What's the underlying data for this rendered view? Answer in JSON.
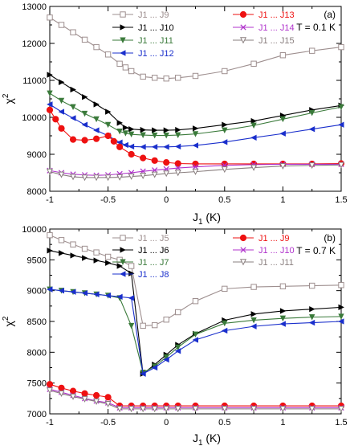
{
  "chart_data": [
    {
      "type": "line",
      "panel_label": "(a)",
      "annotation": "T = 0.1 K",
      "xlabel": "J",
      "xlabel_sub": "1",
      "xlabel_unit": " (K)",
      "ylabel": "χ",
      "ylabel_sup": "2",
      "xlim": [
        -1,
        1.5
      ],
      "ylim": [
        8000,
        13000
      ],
      "xticks": [
        -1,
        -0.5,
        0,
        0.5,
        1,
        1.5
      ],
      "xtick_labels": [
        "-1",
        "-0.5",
        "0",
        "0.5",
        "1",
        "1.5"
      ],
      "yticks": [
        8000,
        9000,
        10000,
        11000,
        12000,
        13000
      ],
      "ytick_labels": [
        "8000",
        "9000",
        "10000",
        "11000",
        "12000",
        "13000"
      ],
      "series": [
        {
          "name": "J1 ... J9",
          "color": "#9e8f8f",
          "marker": "square-open",
          "x": [
            -1,
            -0.9,
            -0.8,
            -0.7,
            -0.6,
            -0.5,
            -0.4,
            -0.35,
            -0.3,
            -0.2,
            -0.1,
            0,
            0.1,
            0.25,
            0.5,
            0.75,
            1,
            1.25,
            1.5
          ],
          "y": [
            12700,
            12500,
            12300,
            12100,
            11900,
            11700,
            11450,
            11350,
            11250,
            11100,
            11070,
            11050,
            11070,
            11120,
            11250,
            11450,
            11680,
            11800,
            11900
          ]
        },
        {
          "name": "J1 ... J10",
          "color": "#000000",
          "marker": "triangle-right",
          "x": [
            -1,
            -0.9,
            -0.8,
            -0.7,
            -0.6,
            -0.5,
            -0.4,
            -0.35,
            -0.3,
            -0.2,
            -0.1,
            0,
            0.1,
            0.25,
            0.5,
            0.75,
            1,
            1.25,
            1.5
          ],
          "y": [
            11150,
            10950,
            10750,
            10550,
            10350,
            10150,
            9850,
            9720,
            9680,
            9660,
            9650,
            9650,
            9660,
            9700,
            9800,
            9900,
            10050,
            10200,
            10320
          ]
        },
        {
          "name": "J1 ... J11",
          "color": "#3a7a3a",
          "marker": "triangle-down",
          "x": [
            -1,
            -0.9,
            -0.8,
            -0.7,
            -0.6,
            -0.5,
            -0.4,
            -0.35,
            -0.3,
            -0.2,
            -0.1,
            0,
            0.1,
            0.25,
            0.5,
            0.75,
            1,
            1.25,
            1.5
          ],
          "y": [
            10650,
            10450,
            10280,
            10100,
            9950,
            9800,
            9620,
            9570,
            9540,
            9520,
            9510,
            9510,
            9520,
            9550,
            9650,
            9780,
            9950,
            10120,
            10280
          ]
        },
        {
          "name": "J1 ... J12",
          "color": "#1a2fcc",
          "marker": "triangle-left",
          "x": [
            -1,
            -0.9,
            -0.8,
            -0.7,
            -0.6,
            -0.5,
            -0.4,
            -0.35,
            -0.3,
            -0.2,
            -0.1,
            0,
            0.1,
            0.25,
            0.5,
            0.75,
            1,
            1.25,
            1.5
          ],
          "y": [
            10350,
            10150,
            9980,
            9800,
            9650,
            9500,
            9320,
            9250,
            9210,
            9200,
            9200,
            9200,
            9210,
            9240,
            9330,
            9450,
            9560,
            9680,
            9800
          ]
        },
        {
          "name": "J1 ... J13",
          "color": "#ee1111",
          "marker": "circle-filled",
          "x": [
            -1,
            -0.95,
            -0.9,
            -0.8,
            -0.7,
            -0.6,
            -0.5,
            -0.45,
            -0.4,
            -0.3,
            -0.2,
            -0.1,
            0,
            0.1,
            0.25,
            0.5,
            0.75,
            1,
            1.25,
            1.5
          ],
          "y": [
            10200,
            9950,
            9700,
            9400,
            9380,
            9420,
            9500,
            9350,
            9200,
            9000,
            8900,
            8830,
            8780,
            8750,
            8740,
            8740,
            8740,
            8740,
            8740,
            8750
          ]
        },
        {
          "name": "J1 ... J14",
          "color": "#b033cc",
          "marker": "x",
          "x": [
            -1,
            -0.9,
            -0.8,
            -0.7,
            -0.6,
            -0.5,
            -0.4,
            -0.3,
            -0.2,
            -0.1,
            0,
            0.1,
            0.25,
            0.5,
            0.75,
            1,
            1.25,
            1.5
          ],
          "y": [
            8560,
            8500,
            8460,
            8440,
            8430,
            8440,
            8470,
            8500,
            8540,
            8570,
            8600,
            8630,
            8660,
            8700,
            8720,
            8730,
            8730,
            8730
          ]
        },
        {
          "name": "J1 ... J15",
          "color": "#8a7f7f",
          "marker": "triangle-down-open",
          "x": [
            -1,
            -0.9,
            -0.8,
            -0.7,
            -0.6,
            -0.5,
            -0.4,
            -0.3,
            -0.2,
            -0.1,
            0,
            0.1,
            0.25,
            0.5,
            0.75,
            1,
            1.25,
            1.5
          ],
          "y": [
            8530,
            8450,
            8390,
            8370,
            8370,
            8370,
            8380,
            8400,
            8420,
            8450,
            8480,
            8500,
            8530,
            8590,
            8640,
            8680,
            8700,
            8710
          ]
        }
      ]
    },
    {
      "type": "line",
      "panel_label": "(b)",
      "annotation": "T = 0.7 K",
      "xlabel": "J",
      "xlabel_sub": "1",
      "xlabel_unit": " (K)",
      "ylabel": "χ",
      "ylabel_sup": "2",
      "xlim": [
        -1,
        1.5
      ],
      "ylim": [
        7000,
        10000
      ],
      "xticks": [
        -1,
        -0.5,
        0,
        0.5,
        1,
        1.5
      ],
      "xtick_labels": [
        "-1",
        "-0.5",
        "0",
        "0.5",
        "1",
        "1.5"
      ],
      "yticks": [
        7000,
        7500,
        8000,
        8500,
        9000,
        9500,
        10000
      ],
      "ytick_labels": [
        "7000",
        "7500",
        "8000",
        "8500",
        "9000",
        "9500",
        "10000"
      ],
      "series": [
        {
          "name": "J1 ... J5",
          "color": "#9e8f8f",
          "marker": "square-open",
          "x": [
            -1,
            -0.9,
            -0.8,
            -0.7,
            -0.6,
            -0.5,
            -0.4,
            -0.3,
            -0.2,
            -0.1,
            0,
            0.1,
            0.25,
            0.5,
            0.75,
            1,
            1.25,
            1.5
          ],
          "y": [
            9900,
            9820,
            9750,
            9680,
            9620,
            9550,
            9500,
            9400,
            8430,
            8440,
            8530,
            8650,
            8830,
            9030,
            9060,
            9070,
            9080,
            9090
          ]
        },
        {
          "name": "J1 ... J6",
          "color": "#000000",
          "marker": "triangle-right",
          "x": [
            -1,
            -0.9,
            -0.8,
            -0.7,
            -0.6,
            -0.5,
            -0.4,
            -0.3,
            -0.2,
            -0.1,
            0,
            0.1,
            0.25,
            0.5,
            0.75,
            1,
            1.25,
            1.5
          ],
          "y": [
            9650,
            9610,
            9570,
            9530,
            9490,
            9450,
            9400,
            9280,
            7650,
            7800,
            7960,
            8120,
            8300,
            8520,
            8620,
            8670,
            8700,
            8730
          ]
        },
        {
          "name": "J1 ... J7",
          "color": "#3a7a3a",
          "marker": "triangle-down",
          "x": [
            -1,
            -0.9,
            -0.8,
            -0.7,
            -0.6,
            -0.5,
            -0.4,
            -0.3,
            -0.2,
            -0.1,
            0,
            0.1,
            0.25,
            0.5,
            0.75,
            1,
            1.25,
            1.5
          ],
          "y": [
            9020,
            9000,
            8980,
            8960,
            8940,
            8920,
            8880,
            8430,
            7670,
            7770,
            7920,
            8080,
            8290,
            8470,
            8520,
            8550,
            8570,
            8580
          ]
        },
        {
          "name": "J1 ... J8",
          "color": "#1a2fcc",
          "marker": "triangle-left",
          "x": [
            -1,
            -0.9,
            -0.8,
            -0.7,
            -0.6,
            -0.5,
            -0.4,
            -0.3,
            -0.2,
            -0.1,
            0,
            0.1,
            0.25,
            0.5,
            0.75,
            1,
            1.25,
            1.5
          ],
          "y": [
            9020,
            9000,
            8980,
            8960,
            8940,
            8920,
            8900,
            8880,
            7650,
            7750,
            7880,
            8020,
            8200,
            8350,
            8420,
            8460,
            8480,
            8500
          ]
        },
        {
          "name": "J1 ... J9",
          "color": "#ee1111",
          "marker": "circle-filled",
          "x": [
            -1,
            -0.9,
            -0.8,
            -0.7,
            -0.6,
            -0.5,
            -0.4,
            -0.3,
            -0.2,
            -0.1,
            0,
            0.1,
            0.25,
            0.5,
            0.75,
            1,
            1.25,
            1.5
          ],
          "y": [
            7480,
            7420,
            7370,
            7330,
            7300,
            7270,
            7130,
            7130,
            7130,
            7130,
            7130,
            7130,
            7130,
            7130,
            7130,
            7130,
            7130,
            7130
          ]
        },
        {
          "name": "J1 ... J10",
          "color": "#b033cc",
          "marker": "x",
          "x": [
            -1,
            -0.9,
            -0.8,
            -0.7,
            -0.6,
            -0.5,
            -0.4,
            -0.3,
            -0.2,
            -0.1,
            0,
            0.1,
            0.25,
            0.5,
            0.75,
            1,
            1.25,
            1.5
          ],
          "y": [
            7400,
            7350,
            7300,
            7250,
            7210,
            7180,
            7100,
            7100,
            7100,
            7100,
            7100,
            7100,
            7100,
            7100,
            7100,
            7100,
            7100,
            7100
          ]
        },
        {
          "name": "J1 ... J11",
          "color": "#8a7f7f",
          "marker": "triangle-down-open",
          "x": [
            -1,
            -0.9,
            -0.8,
            -0.7,
            -0.6,
            -0.5,
            -0.4,
            -0.3,
            -0.2,
            -0.1,
            0,
            0.1,
            0.25,
            0.5,
            0.75,
            1,
            1.25,
            1.5
          ],
          "y": [
            7380,
            7330,
            7280,
            7240,
            7200,
            7160,
            7080,
            7080,
            7080,
            7080,
            7080,
            7080,
            7080,
            7080,
            7080,
            7080,
            7080,
            7080
          ]
        }
      ]
    }
  ]
}
